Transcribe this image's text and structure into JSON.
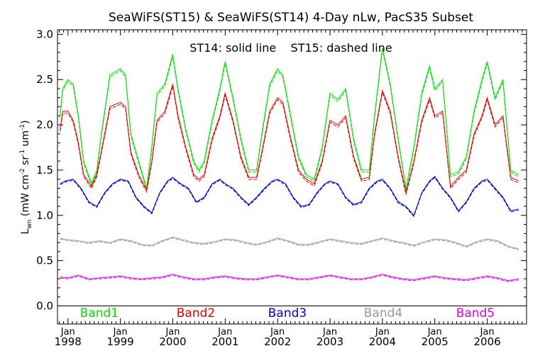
{
  "chart_data": {
    "type": "line",
    "title": "SeaWiFS(ST15) & SeaWiFS(ST14) 4-Day nLw, PacS35 Subset",
    "annotation": "ST14: solid line    ST15: dashed line",
    "ylabel_main": "L",
    "ylabel_sub": "wn",
    "ylabel_units": "(mW cm",
    "ylabel_units_parts": [
      "(mW cm",
      "-2",
      " sr",
      "-1",
      " um",
      "-1",
      ")"
    ],
    "ylim": [
      -0.2,
      3.05
    ],
    "yticks": [
      0.0,
      0.5,
      1.0,
      1.5,
      2.0,
      2.5,
      3.0
    ],
    "ytick_labels": [
      "0.0",
      "0.5",
      "1.0",
      "1.5",
      "2.0",
      "2.5",
      "3.0"
    ],
    "xlim": [
      1997.8,
      2006.75
    ],
    "xtick_positions": [
      1998,
      1999,
      2000,
      2001,
      2002,
      2003,
      2004,
      2005,
      2006
    ],
    "xtick_month": "Jan",
    "xtick_years": [
      "1998",
      "1999",
      "2000",
      "2001",
      "2002",
      "2003",
      "2004",
      "2005",
      "2006"
    ],
    "grid": false,
    "legend_position": "bottom",
    "series": [
      {
        "name": "Band1",
        "color": "#00dd00",
        "x": [
          1997.85,
          1997.9,
          1998.0,
          1998.1,
          1998.2,
          1998.3,
          1998.45,
          1998.55,
          1998.65,
          1998.8,
          1999.0,
          1999.1,
          1999.2,
          1999.35,
          1999.5,
          1999.6,
          1999.7,
          1999.85,
          2000.0,
          2000.1,
          2000.25,
          2000.4,
          2000.5,
          2000.6,
          2000.75,
          2000.9,
          2001.0,
          2001.15,
          2001.3,
          2001.45,
          2001.6,
          2001.7,
          2001.85,
          2002.0,
          2002.1,
          2002.25,
          2002.4,
          2002.55,
          2002.7,
          2002.85,
          2003.0,
          2003.15,
          2003.3,
          2003.45,
          2003.6,
          2003.75,
          2003.85,
          2004.0,
          2004.15,
          2004.3,
          2004.45,
          2004.6,
          2004.75,
          2004.9,
          2005.0,
          2005.15,
          2005.3,
          2005.45,
          2005.6,
          2005.75,
          2005.9,
          2006.0,
          2006.15,
          2006.3,
          2006.45,
          2006.6
        ],
        "values": [
          2.1,
          2.4,
          2.5,
          2.45,
          2.1,
          1.6,
          1.35,
          1.5,
          1.95,
          2.55,
          2.62,
          2.55,
          1.9,
          1.6,
          1.3,
          1.75,
          2.35,
          2.45,
          2.78,
          2.4,
          1.95,
          1.6,
          1.5,
          1.6,
          2.05,
          2.4,
          2.7,
          2.3,
          1.85,
          1.5,
          1.5,
          1.9,
          2.45,
          2.62,
          2.55,
          2.1,
          1.65,
          1.45,
          1.4,
          1.75,
          2.35,
          2.28,
          2.4,
          1.85,
          1.5,
          1.5,
          2.1,
          2.85,
          2.45,
          1.85,
          1.3,
          1.75,
          2.35,
          2.65,
          2.4,
          2.5,
          1.45,
          1.48,
          1.65,
          2.15,
          2.5,
          2.7,
          2.3,
          2.5,
          1.5,
          1.45
        ]
      },
      {
        "name": "Band2",
        "color": "#dd0000",
        "x": [
          1997.85,
          1997.9,
          1998.0,
          1998.1,
          1998.2,
          1998.3,
          1998.45,
          1998.55,
          1998.65,
          1998.8,
          1999.0,
          1999.1,
          1999.2,
          1999.35,
          1999.5,
          1999.6,
          1999.7,
          1999.85,
          2000.0,
          2000.1,
          2000.25,
          2000.4,
          2000.5,
          2000.6,
          2000.75,
          2000.9,
          2001.0,
          2001.15,
          2001.3,
          2001.45,
          2001.6,
          2001.7,
          2001.85,
          2002.0,
          2002.1,
          2002.25,
          2002.4,
          2002.55,
          2002.7,
          2002.85,
          2003.0,
          2003.15,
          2003.3,
          2003.45,
          2003.6,
          2003.75,
          2003.85,
          2004.0,
          2004.15,
          2004.3,
          2004.45,
          2004.6,
          2004.75,
          2004.9,
          2005.0,
          2005.15,
          2005.3,
          2005.45,
          2005.6,
          2005.75,
          2005.9,
          2006.0,
          2006.15,
          2006.3,
          2006.45,
          2006.6
        ],
        "values": [
          1.95,
          2.15,
          2.15,
          2.05,
          1.8,
          1.45,
          1.32,
          1.45,
          1.75,
          2.2,
          2.25,
          2.2,
          1.7,
          1.45,
          1.28,
          1.6,
          2.05,
          2.15,
          2.45,
          2.1,
          1.75,
          1.45,
          1.4,
          1.45,
          1.85,
          2.1,
          2.35,
          2.05,
          1.65,
          1.42,
          1.42,
          1.7,
          2.15,
          2.3,
          2.25,
          1.85,
          1.5,
          1.4,
          1.35,
          1.6,
          2.05,
          2.0,
          2.1,
          1.65,
          1.4,
          1.42,
          1.9,
          2.38,
          2.15,
          1.65,
          1.25,
          1.6,
          2.05,
          2.3,
          2.1,
          2.15,
          1.32,
          1.42,
          1.5,
          1.9,
          2.1,
          2.3,
          2.0,
          2.1,
          1.42,
          1.38
        ]
      },
      {
        "name": "Band3",
        "color": "#0000cc",
        "x": [
          1997.85,
          1997.95,
          1998.1,
          1998.25,
          1998.4,
          1998.55,
          1998.7,
          1998.85,
          1999.0,
          1999.15,
          1999.3,
          1999.45,
          1999.6,
          1999.75,
          1999.9,
          2000.0,
          2000.15,
          2000.3,
          2000.45,
          2000.6,
          2000.75,
          2000.9,
          2001.0,
          2001.15,
          2001.3,
          2001.45,
          2001.6,
          2001.75,
          2001.9,
          2002.0,
          2002.15,
          2002.3,
          2002.45,
          2002.6,
          2002.75,
          2002.9,
          2003.0,
          2003.15,
          2003.3,
          2003.45,
          2003.6,
          2003.75,
          2003.9,
          2004.0,
          2004.15,
          2004.3,
          2004.45,
          2004.6,
          2004.75,
          2004.9,
          2005.0,
          2005.15,
          2005.3,
          2005.45,
          2005.6,
          2005.75,
          2005.9,
          2006.0,
          2006.15,
          2006.3,
          2006.45,
          2006.6
        ],
        "values": [
          1.35,
          1.38,
          1.4,
          1.3,
          1.15,
          1.1,
          1.25,
          1.35,
          1.4,
          1.38,
          1.2,
          1.1,
          1.03,
          1.25,
          1.38,
          1.42,
          1.35,
          1.3,
          1.15,
          1.2,
          1.35,
          1.4,
          1.35,
          1.3,
          1.2,
          1.12,
          1.2,
          1.3,
          1.38,
          1.4,
          1.35,
          1.2,
          1.1,
          1.12,
          1.25,
          1.35,
          1.38,
          1.35,
          1.2,
          1.12,
          1.15,
          1.3,
          1.38,
          1.4,
          1.3,
          1.15,
          1.1,
          1.0,
          1.25,
          1.38,
          1.43,
          1.3,
          1.2,
          1.05,
          1.15,
          1.3,
          1.38,
          1.4,
          1.3,
          1.2,
          1.05,
          1.07
        ]
      },
      {
        "name": "Band4",
        "color": "#999999",
        "x": [
          1997.85,
          1998.0,
          1998.2,
          1998.4,
          1998.6,
          1998.8,
          1999.0,
          1999.2,
          1999.4,
          1999.6,
          1999.8,
          2000.0,
          2000.2,
          2000.4,
          2000.6,
          2000.8,
          2001.0,
          2001.2,
          2001.4,
          2001.6,
          2001.8,
          2002.0,
          2002.2,
          2002.4,
          2002.6,
          2002.8,
          2003.0,
          2003.2,
          2003.4,
          2003.6,
          2003.8,
          2004.0,
          2004.2,
          2004.4,
          2004.6,
          2004.8,
          2005.0,
          2005.2,
          2005.4,
          2005.6,
          2005.8,
          2006.0,
          2006.2,
          2006.4,
          2006.6
        ],
        "values": [
          0.75,
          0.73,
          0.72,
          0.7,
          0.72,
          0.7,
          0.74,
          0.72,
          0.68,
          0.67,
          0.72,
          0.76,
          0.73,
          0.7,
          0.69,
          0.71,
          0.74,
          0.73,
          0.7,
          0.68,
          0.71,
          0.75,
          0.72,
          0.68,
          0.68,
          0.71,
          0.74,
          0.72,
          0.7,
          0.69,
          0.72,
          0.75,
          0.72,
          0.7,
          0.67,
          0.71,
          0.74,
          0.73,
          0.7,
          0.66,
          0.71,
          0.74,
          0.72,
          0.66,
          0.63
        ]
      },
      {
        "name": "Band5",
        "color": "#dd00dd",
        "x": [
          1997.85,
          1998.0,
          1998.2,
          1998.4,
          1998.6,
          1998.8,
          1999.0,
          1999.2,
          1999.4,
          1999.6,
          1999.8,
          2000.0,
          2000.2,
          2000.4,
          2000.6,
          2000.8,
          2001.0,
          2001.2,
          2001.4,
          2001.6,
          2001.8,
          2002.0,
          2002.2,
          2002.4,
          2002.6,
          2002.8,
          2003.0,
          2003.2,
          2003.4,
          2003.6,
          2003.8,
          2004.0,
          2004.2,
          2004.4,
          2004.6,
          2004.8,
          2005.0,
          2005.2,
          2005.4,
          2005.6,
          2005.8,
          2006.0,
          2006.2,
          2006.4,
          2006.6
        ],
        "values": [
          0.32,
          0.31,
          0.34,
          0.3,
          0.31,
          0.32,
          0.33,
          0.31,
          0.3,
          0.31,
          0.32,
          0.35,
          0.32,
          0.3,
          0.3,
          0.32,
          0.33,
          0.31,
          0.3,
          0.3,
          0.32,
          0.34,
          0.32,
          0.3,
          0.3,
          0.32,
          0.34,
          0.32,
          0.3,
          0.3,
          0.32,
          0.35,
          0.32,
          0.3,
          0.29,
          0.31,
          0.33,
          0.31,
          0.3,
          0.29,
          0.31,
          0.33,
          0.31,
          0.28,
          0.3
        ]
      }
    ]
  }
}
